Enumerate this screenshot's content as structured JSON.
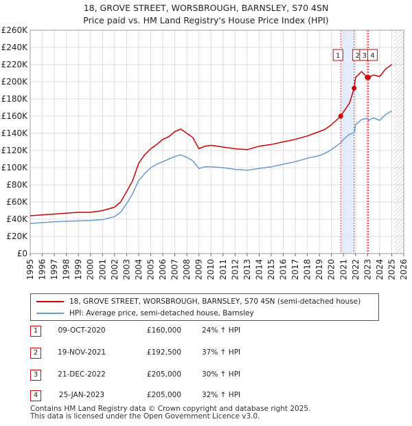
{
  "title_line1": "18, GROVE STREET, WORSBROUGH, BARNSLEY, S70 4SN",
  "title_line2": "Price paid vs. HM Land Registry's House Price Index (HPI)",
  "colors": {
    "property": "#cc0000",
    "hpi": "#6699cc",
    "band": "#dde8f7",
    "grid": "#dddddd",
    "vline": "#dd3333"
  },
  "legend": {
    "property_label": "18, GROVE STREET, WORSBROUGH, BARNSLEY, S70 4SN (semi-detached house)",
    "hpi_label": "HPI: Average price, semi-detached house, Barnsley"
  },
  "sales": [
    {
      "num": "1",
      "date": "09-OCT-2020",
      "price": "£160,000",
      "hpi": "24% ↑ HPI"
    },
    {
      "num": "2",
      "date": "19-NOV-2021",
      "price": "£192,500",
      "hpi": "37% ↑ HPI"
    },
    {
      "num": "3",
      "date": "21-DEC-2022",
      "price": "£205,000",
      "hpi": "30% ↑ HPI"
    },
    {
      "num": "4",
      "date": "25-JAN-2023",
      "price": "£205,000",
      "hpi": "32% ↑ HPI"
    }
  ],
  "footer_line1": "Contains HM Land Registry data © Crown copyright and database right 2025.",
  "footer_line2": "This data is licensed under the Open Government Licence v3.0.",
  "chart_data": {
    "type": "line",
    "title": "18, GROVE STREET, WORSBROUGH, BARNSLEY, S70 4SN",
    "subtitle": "Price paid vs. HM Land Registry's House Price Index (HPI)",
    "xlim": [
      1995,
      2026
    ],
    "ylim": [
      0,
      260000
    ],
    "x_ticks": [
      1995,
      1996,
      1997,
      1998,
      1999,
      2000,
      2001,
      2002,
      2003,
      2004,
      2005,
      2006,
      2007,
      2008,
      2009,
      2010,
      2011,
      2012,
      2013,
      2014,
      2015,
      2016,
      2017,
      2018,
      2019,
      2020,
      2021,
      2022,
      2023,
      2024,
      2025,
      2026
    ],
    "y_ticks": [
      0,
      20000,
      40000,
      60000,
      80000,
      100000,
      120000,
      140000,
      160000,
      180000,
      200000,
      220000,
      240000,
      260000
    ],
    "y_tick_labels": [
      "£0",
      "£20K",
      "£40K",
      "£60K",
      "£80K",
      "£100K",
      "£120K",
      "£140K",
      "£160K",
      "£180K",
      "£200K",
      "£220K",
      "£240K",
      "£260K"
    ],
    "grid": true,
    "shaded_band": [
      2020.77,
      2021.88
    ],
    "hatched_from": 2025.2,
    "series": [
      {
        "name": "18, GROVE STREET, WORSBROUGH, BARNSLEY, S70 4SN (semi-detached house)",
        "x": [
          1995,
          1996,
          1997,
          1998,
          1999,
          2000,
          2001,
          2002,
          2002.5,
          2003,
          2003.5,
          2004,
          2004.5,
          2005,
          2005.5,
          2006,
          2006.5,
          2007,
          2007.5,
          2008,
          2008.5,
          2009,
          2009.5,
          2010,
          2011,
          2012,
          2013,
          2014,
          2015,
          2016,
          2017,
          2018,
          2019,
          2019.5,
          2020,
          2020.77,
          2021,
          2021.5,
          2021.88,
          2022,
          2022.5,
          2022.97,
          2023.07,
          2023.5,
          2024,
          2024.5,
          2025
        ],
        "values": [
          44000,
          45000,
          46000,
          47000,
          48000,
          48000,
          50000,
          54000,
          60000,
          72000,
          85000,
          105000,
          115000,
          122000,
          127000,
          133000,
          136000,
          142000,
          145000,
          140000,
          135000,
          122000,
          125000,
          126000,
          124000,
          122000,
          121000,
          125000,
          127000,
          130000,
          133000,
          137000,
          142000,
          145000,
          150000,
          160000,
          165000,
          175000,
          192500,
          205000,
          212000,
          205000,
          205000,
          208000,
          206000,
          215000,
          220000
        ]
      },
      {
        "name": "HPI: Average price, semi-detached house, Barnsley",
        "x": [
          1995,
          1996,
          1997,
          1998,
          1999,
          2000,
          2001,
          2002,
          2002.5,
          2003,
          2003.5,
          2004,
          2004.5,
          2005,
          2005.5,
          2006,
          2006.5,
          2007,
          2007.5,
          2008,
          2008.5,
          2009,
          2009.5,
          2010,
          2011,
          2012,
          2013,
          2014,
          2015,
          2016,
          2017,
          2018,
          2019,
          2019.5,
          2020,
          2020.77,
          2021,
          2021.5,
          2021.88,
          2022,
          2022.5,
          2022.97,
          2023.07,
          2023.5,
          2024,
          2024.5,
          2025
        ],
        "values": [
          35000,
          36000,
          37000,
          37500,
          38000,
          38500,
          39500,
          43000,
          48000,
          58000,
          70000,
          85000,
          93000,
          100000,
          104000,
          107000,
          110000,
          113000,
          115000,
          112000,
          108000,
          99000,
          101000,
          101000,
          100000,
          98000,
          97000,
          99000,
          101000,
          104000,
          107000,
          111000,
          114000,
          117000,
          121000,
          129000,
          133000,
          139000,
          140500,
          150000,
          156000,
          157500,
          155000,
          158000,
          155000,
          162000,
          166000
        ]
      }
    ],
    "markers": [
      {
        "num": "1",
        "x": 2020.77,
        "value": 160000
      },
      {
        "num": "2",
        "x": 2021.88,
        "value": 192500
      },
      {
        "num": "3",
        "x": 2022.97,
        "value": 205000
      },
      {
        "num": "4",
        "x": 2023.07,
        "value": 205000
      }
    ]
  }
}
